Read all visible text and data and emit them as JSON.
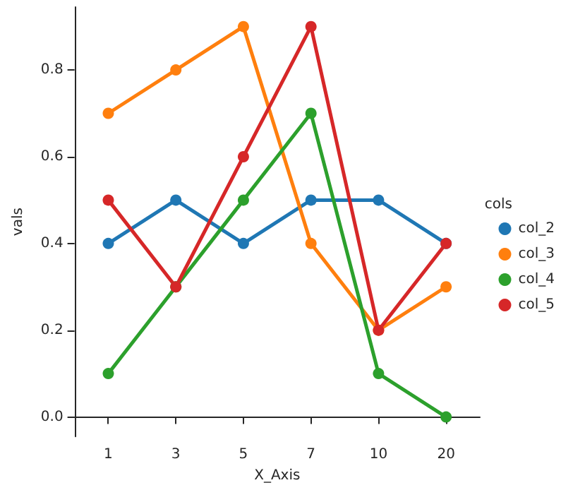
{
  "chart_data": {
    "type": "line",
    "xlabel": "X_Axis",
    "ylabel": "vals",
    "legend_title": "cols",
    "legend": "right",
    "marker": "circle",
    "grid": false,
    "categories": [
      "1",
      "3",
      "5",
      "7",
      "10",
      "20"
    ],
    "ylim": [
      -0.045,
      0.945
    ],
    "yticks": [
      {
        "value": 0,
        "label": "0.0"
      },
      {
        "value": 0.2,
        "label": "0.2"
      },
      {
        "value": 0.4,
        "label": "0.4"
      },
      {
        "value": 0.6,
        "label": "0.6"
      },
      {
        "value": 0.8,
        "label": "0.8"
      }
    ],
    "series": [
      {
        "name": "col_2",
        "color": "#1f77b4",
        "values": [
          0.4,
          0.5,
          0.4,
          0.5,
          0.5,
          0.4
        ]
      },
      {
        "name": "col_3",
        "color": "#ff7f0e",
        "values": [
          0.7,
          0.8,
          0.9,
          0.4,
          0.2,
          0.3
        ]
      },
      {
        "name": "col_4",
        "color": "#2ca02c",
        "values": [
          0.1,
          0.3,
          0.5,
          0.7,
          0.1,
          0.0
        ]
      },
      {
        "name": "col_5",
        "color": "#d62728",
        "values": [
          0.5,
          0.3,
          0.6,
          0.9,
          0.2,
          0.4
        ]
      }
    ]
  }
}
